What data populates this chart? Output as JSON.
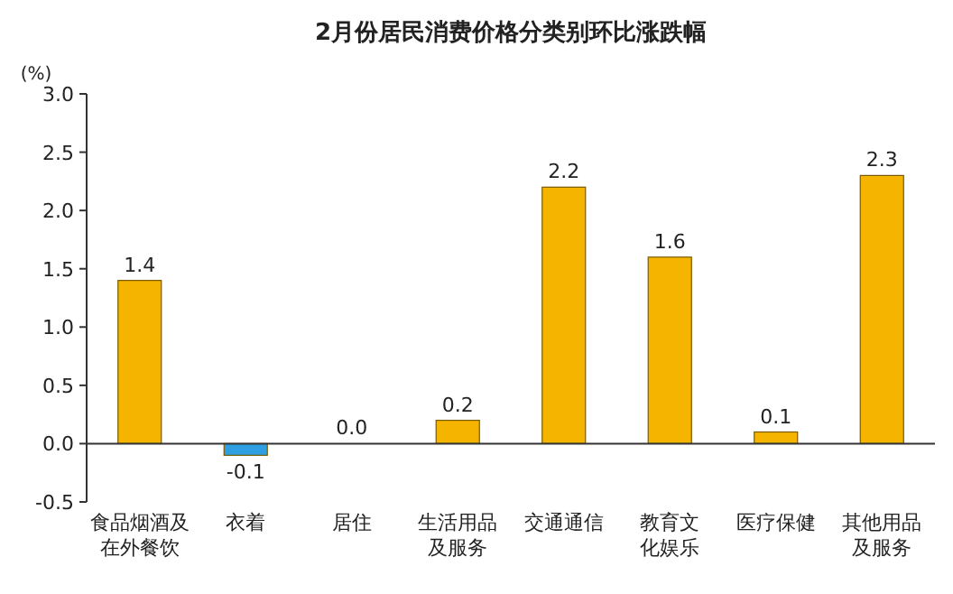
{
  "chart_data": {
    "type": "bar",
    "title": "2月份居民消费价格分类别环比涨跌幅",
    "ylabel": "(%)",
    "categories": [
      "食品烟酒及在外餐饮",
      "衣着",
      "居住",
      "生活用品及服务",
      "交通通信",
      "教育文化娱乐",
      "医疗保健",
      "其他用品及服务"
    ],
    "values": [
      1.4,
      -0.1,
      0.0,
      0.2,
      2.2,
      1.6,
      0.1,
      2.3
    ],
    "colors": [
      "#f5b400",
      "#2e9fe0",
      "#f5b400",
      "#f5b400",
      "#f5b400",
      "#f5b400",
      "#f5b400",
      "#f5b400"
    ],
    "value_labels": [
      "1.4",
      "-0.1",
      "0.0",
      "0.2",
      "2.2",
      "1.6",
      "0.1",
      "2.3"
    ],
    "ylim": [
      -0.5,
      3.0
    ],
    "yticks": [
      {
        "value": -0.5,
        "label": "-0.5"
      },
      {
        "value": 0,
        "label": "0.0"
      },
      {
        "value": 0.5,
        "label": "0.5"
      },
      {
        "value": 1,
        "label": "1.0"
      },
      {
        "value": 1.5,
        "label": "1.5"
      },
      {
        "value": 2,
        "label": "2.0"
      },
      {
        "value": 2.5,
        "label": "2.5"
      },
      {
        "value": 3,
        "label": "3.0"
      }
    ]
  }
}
